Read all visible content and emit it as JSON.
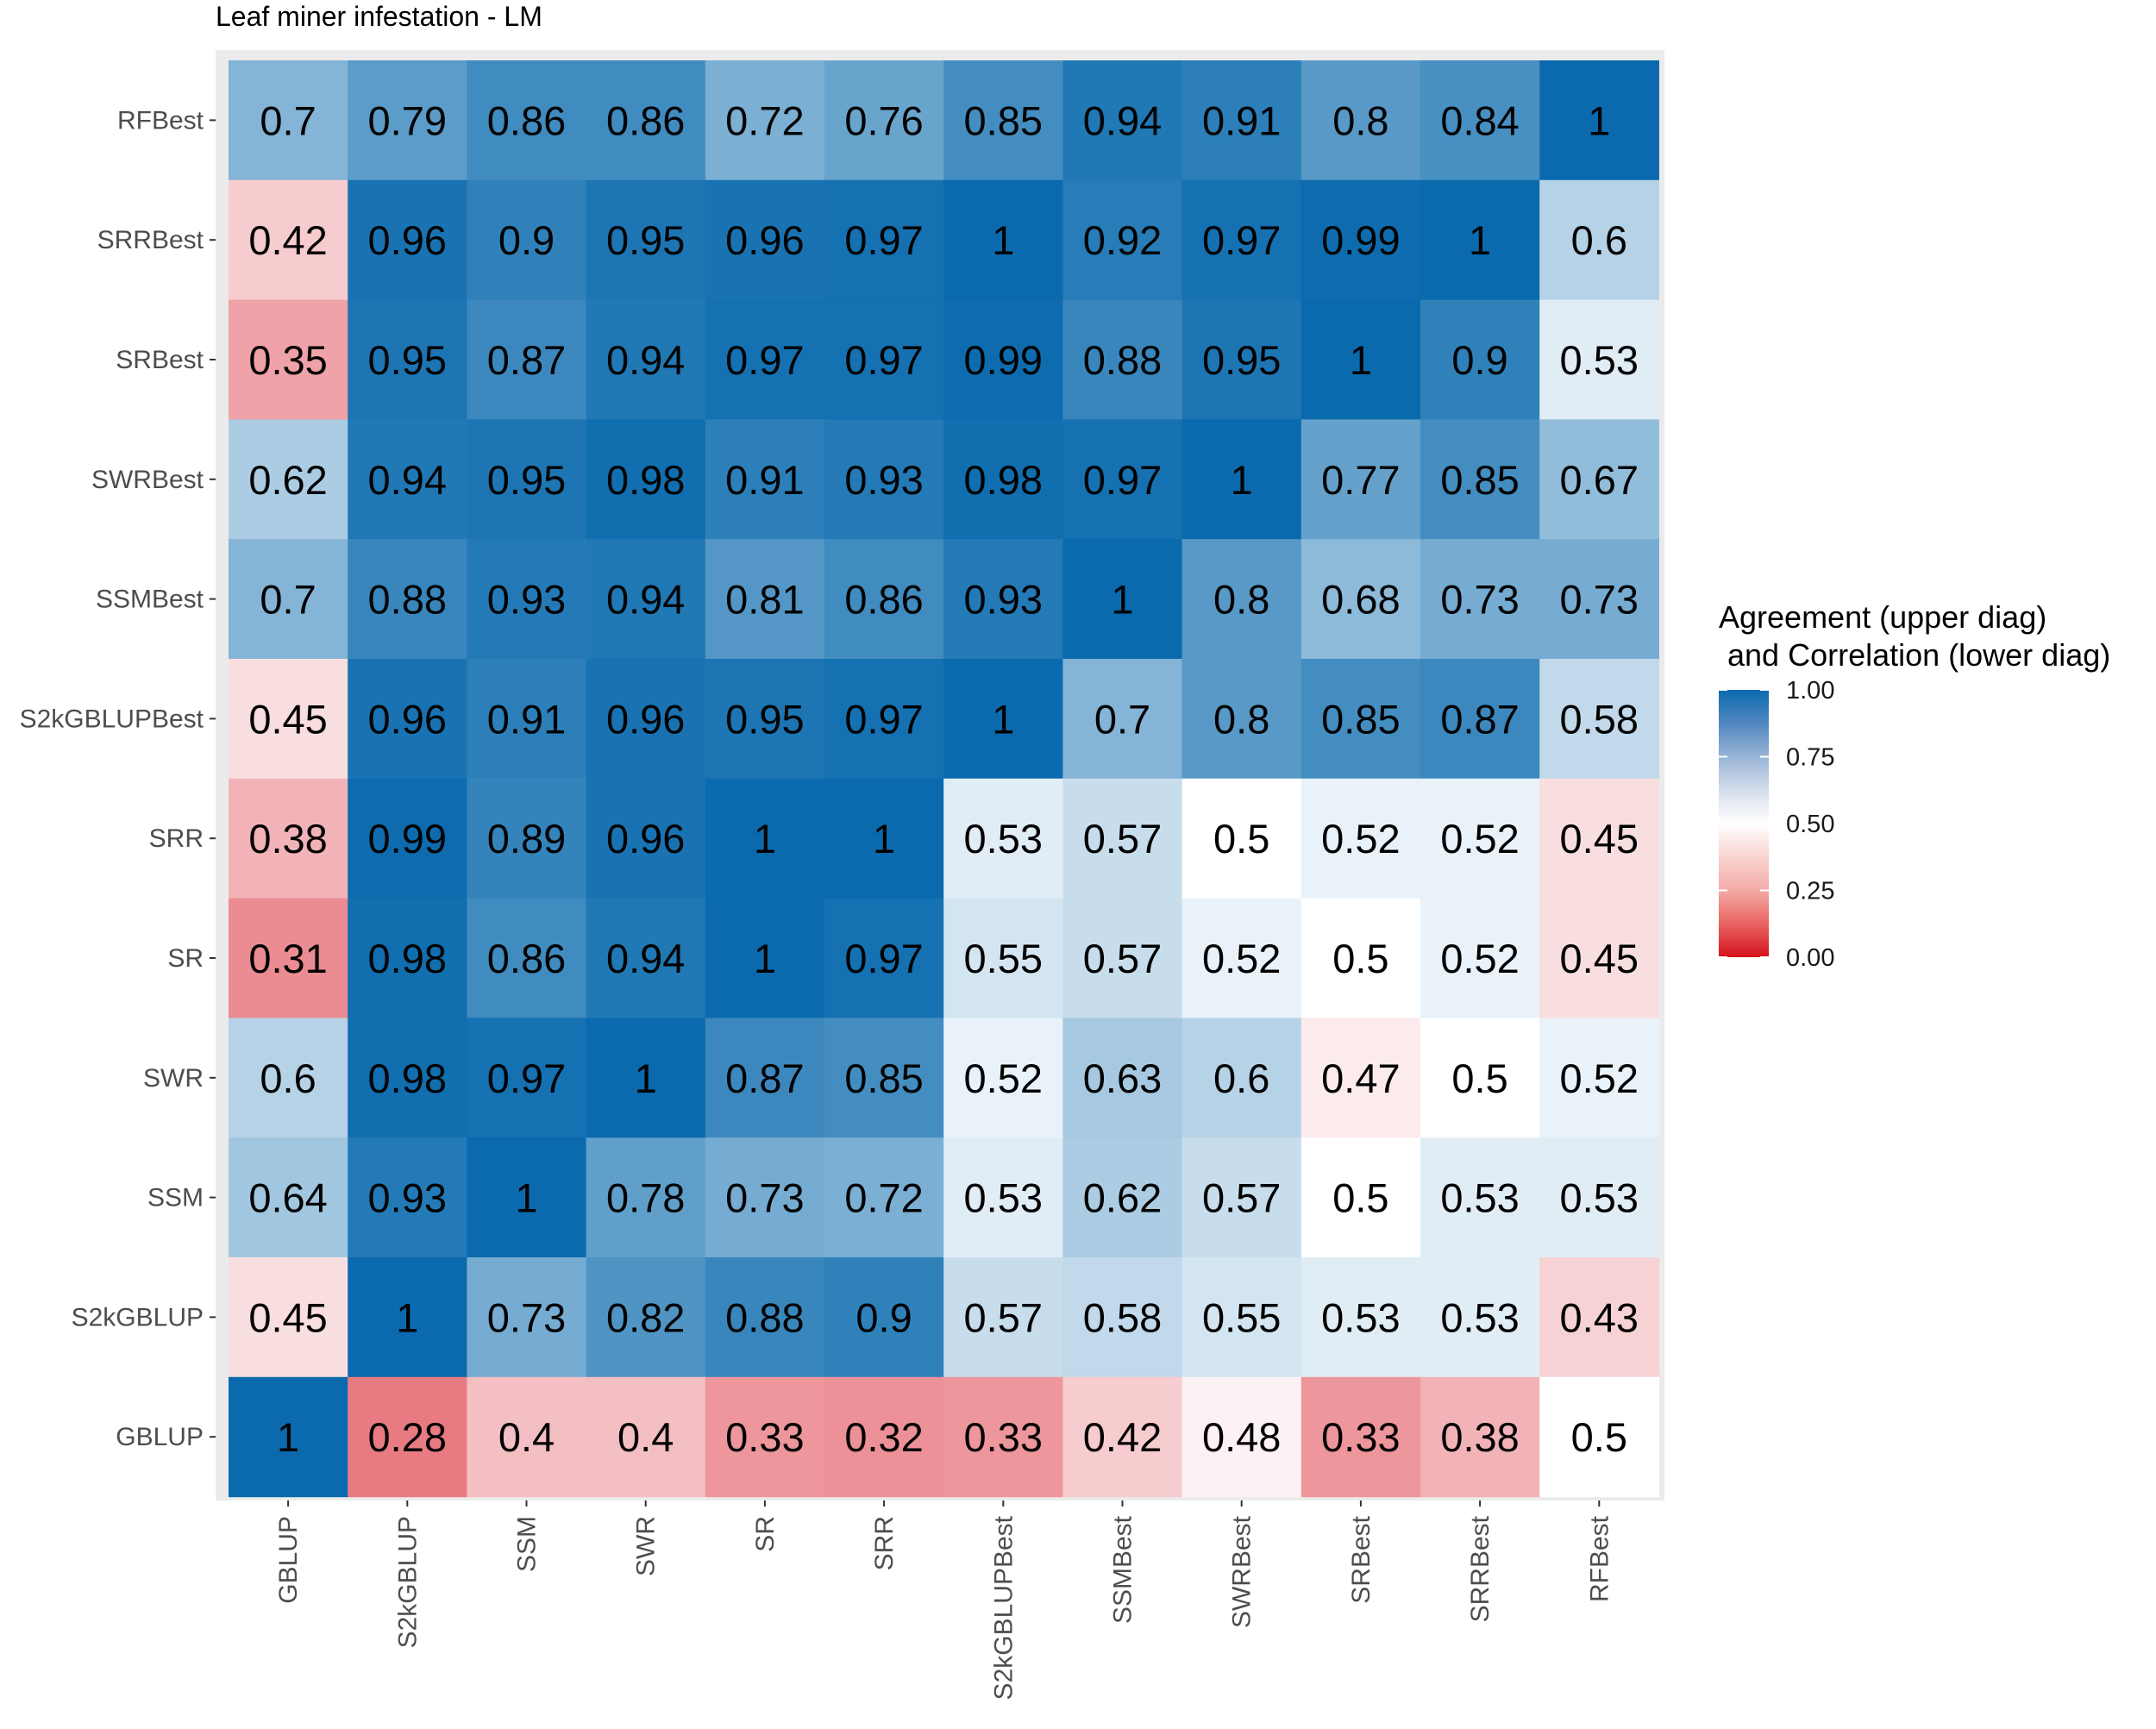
{
  "chart_data": {
    "type": "heatmap",
    "title": "Leaf miner infestation - LM",
    "xlabel": "",
    "ylabel": "",
    "x_categories": [
      "GBLUP",
      "S2kGBLUP",
      "SSM",
      "SWR",
      "SR",
      "SRR",
      "S2kGBLUPBest",
      "SSMBest",
      "SWRBest",
      "SRBest",
      "SRRBest",
      "RFBest"
    ],
    "y_categories": [
      "GBLUP",
      "S2kGBLUP",
      "SSM",
      "SWR",
      "SR",
      "SRR",
      "S2kGBLUPBest",
      "SSMBest",
      "SWRBest",
      "SRBest",
      "SRRBest",
      "RFBest"
    ],
    "rows_top_to_bottom": [
      {
        "row": "RFBest",
        "values": [
          0.7,
          0.79,
          0.86,
          0.86,
          0.72,
          0.76,
          0.85,
          0.94,
          0.91,
          0.8,
          0.84,
          1
        ],
        "labels": [
          "0.7",
          "0.79",
          "0.86",
          "0.86",
          "0.72",
          "0.76",
          "0.85",
          "0.94",
          "0.91",
          "0.8",
          "0.84",
          "1"
        ]
      },
      {
        "row": "SRRBest",
        "values": [
          0.42,
          0.96,
          0.9,
          0.95,
          0.96,
          0.97,
          1,
          0.92,
          0.97,
          0.99,
          1,
          0.6
        ],
        "labels": [
          "0.42",
          "0.96",
          "0.9",
          "0.95",
          "0.96",
          "0.97",
          "1",
          "0.92",
          "0.97",
          "0.99",
          "1",
          "0.6"
        ]
      },
      {
        "row": "SRBest",
        "values": [
          0.35,
          0.95,
          0.87,
          0.94,
          0.97,
          0.97,
          0.99,
          0.88,
          0.95,
          1,
          0.9,
          0.53
        ],
        "labels": [
          "0.35",
          "0.95",
          "0.87",
          "0.94",
          "0.97",
          "0.97",
          "0.99",
          "0.88",
          "0.95",
          "1",
          "0.9",
          "0.53"
        ]
      },
      {
        "row": "SWRBest",
        "values": [
          0.62,
          0.94,
          0.95,
          0.98,
          0.91,
          0.93,
          0.98,
          0.97,
          1,
          0.77,
          0.85,
          0.67
        ],
        "labels": [
          "0.62",
          "0.94",
          "0.95",
          "0.98",
          "0.91",
          "0.93",
          "0.98",
          "0.97",
          "1",
          "0.77",
          "0.85",
          "0.67"
        ]
      },
      {
        "row": "SSMBest",
        "values": [
          0.7,
          0.88,
          0.93,
          0.94,
          0.81,
          0.86,
          0.93,
          1,
          0.8,
          0.68,
          0.73,
          0.73
        ],
        "labels": [
          "0.7",
          "0.88",
          "0.93",
          "0.94",
          "0.81",
          "0.86",
          "0.93",
          "1",
          "0.8",
          "0.68",
          "0.73",
          "0.73"
        ]
      },
      {
        "row": "S2kGBLUPBest",
        "values": [
          0.45,
          0.96,
          0.91,
          0.96,
          0.95,
          0.97,
          1,
          0.7,
          0.8,
          0.85,
          0.87,
          0.58
        ],
        "labels": [
          "0.45",
          "0.96",
          "0.91",
          "0.96",
          "0.95",
          "0.97",
          "1",
          "0.7",
          "0.8",
          "0.85",
          "0.87",
          "0.58"
        ]
      },
      {
        "row": "SRR",
        "values": [
          0.38,
          0.99,
          0.89,
          0.96,
          1,
          1,
          0.53,
          0.57,
          0.5,
          0.52,
          0.52,
          0.45
        ],
        "labels": [
          "0.38",
          "0.99",
          "0.89",
          "0.96",
          "1",
          "1",
          "0.53",
          "0.57",
          "0.5",
          "0.52",
          "0.52",
          "0.45"
        ]
      },
      {
        "row": "SR",
        "values": [
          0.31,
          0.98,
          0.86,
          0.94,
          1,
          0.97,
          0.55,
          0.57,
          0.52,
          0.5,
          0.52,
          0.45
        ],
        "labels": [
          "0.31",
          "0.98",
          "0.86",
          "0.94",
          "1",
          "0.97",
          "0.55",
          "0.57",
          "0.52",
          "0.5",
          "0.52",
          "0.45"
        ]
      },
      {
        "row": "SWR",
        "values": [
          0.6,
          0.98,
          0.97,
          1,
          0.87,
          0.85,
          0.52,
          0.63,
          0.6,
          0.47,
          0.5,
          0.52
        ],
        "labels": [
          "0.6",
          "0.98",
          "0.97",
          "1",
          "0.87",
          "0.85",
          "0.52",
          "0.63",
          "0.6",
          "0.47",
          "0.5",
          "0.52"
        ]
      },
      {
        "row": "SSM",
        "values": [
          0.64,
          0.93,
          1,
          0.78,
          0.73,
          0.72,
          0.53,
          0.62,
          0.57,
          0.5,
          0.53,
          0.53
        ],
        "labels": [
          "0.64",
          "0.93",
          "1",
          "0.78",
          "0.73",
          "0.72",
          "0.53",
          "0.62",
          "0.57",
          "0.5",
          "0.53",
          "0.53"
        ]
      },
      {
        "row": "S2kGBLUP",
        "values": [
          0.45,
          1,
          0.73,
          0.82,
          0.88,
          0.9,
          0.57,
          0.58,
          0.55,
          0.53,
          0.53,
          0.43
        ],
        "labels": [
          "0.45",
          "1",
          "0.73",
          "0.82",
          "0.88",
          "0.9",
          "0.57",
          "0.58",
          "0.55",
          "0.53",
          "0.53",
          "0.43"
        ]
      },
      {
        "row": "GBLUP",
        "values": [
          1,
          0.28,
          0.4,
          0.4,
          0.33,
          0.32,
          0.33,
          0.42,
          0.48,
          0.33,
          0.38,
          0.5
        ],
        "labels": [
          "1",
          "0.28",
          "0.4",
          "0.4",
          "0.33",
          "0.32",
          "0.33",
          "0.42",
          "0.48",
          "0.33",
          "0.38",
          "0.5"
        ]
      }
    ],
    "colorbar": {
      "title_lines": [
        "Agreement (upper  diag)",
        " and Correlation (lower diag)"
      ],
      "range": [
        0,
        1
      ],
      "ticks": [
        1.0,
        0.75,
        0.5,
        0.25,
        0.0
      ],
      "tick_labels": [
        "1.00",
        "0.75",
        "0.50",
        "0.25",
        "0.00"
      ],
      "low_color": "#d6121f",
      "mid_color": "#ffffff",
      "high_color": "#0a6aad",
      "midpoint": 0.5
    },
    "panel_background": "#ebebeb",
    "grid": true,
    "legend_position": "right"
  }
}
